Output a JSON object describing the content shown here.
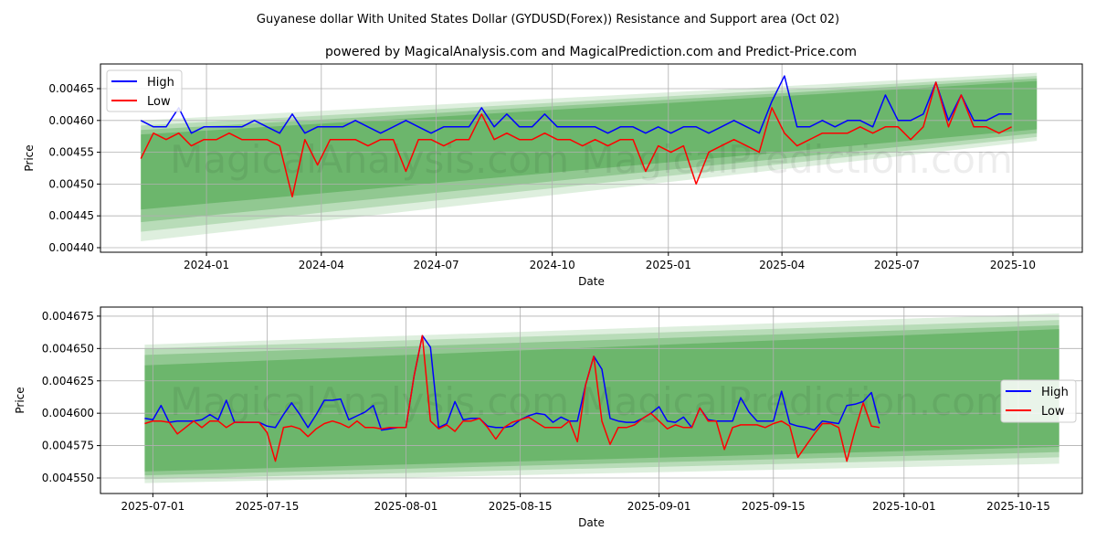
{
  "title": "Guyanese dollar With United States Dollar (GYDUSD(Forex)) Resistance and Support area (Oct 02)",
  "subtitle": "powered by MagicalAnalysis.com and MagicalPrediction.com and Predict-Price.com",
  "watermark": "MagicalAnalysis.com   MagicalPrediction.com",
  "colors": {
    "high": "#0000ff",
    "low": "#ff0000",
    "band": "#008000",
    "grid": "#b0b0b0"
  },
  "chart_data": [
    {
      "type": "line",
      "xlabel": "Date",
      "ylabel": "Price",
      "legend": [
        "High",
        "Low"
      ],
      "legend_position": "top-left",
      "grid": true,
      "xlim": [
        "2023-10-09",
        "2025-11-25"
      ],
      "ylim": [
        0.0043928,
        0.0046888
      ],
      "xticks": [
        {
          "date": "2024-01-01",
          "label": "2024-01"
        },
        {
          "date": "2024-04-01",
          "label": "2024-04"
        },
        {
          "date": "2024-07-01",
          "label": "2024-07"
        },
        {
          "date": "2024-10-01",
          "label": "2024-10"
        },
        {
          "date": "2025-01-01",
          "label": "2025-01"
        },
        {
          "date": "2025-04-01",
          "label": "2025-04"
        },
        {
          "date": "2025-07-01",
          "label": "2025-07"
        },
        {
          "date": "2025-10-01",
          "label": "2025-10"
        }
      ],
      "yticks": [
        {
          "value": 0.0044,
          "label": "0.00440"
        },
        {
          "value": 0.00445,
          "label": "0.00445"
        },
        {
          "value": 0.0045,
          "label": "0.00450"
        },
        {
          "value": 0.00455,
          "label": "0.00455"
        },
        {
          "value": 0.0046,
          "label": "0.00460"
        },
        {
          "value": 0.00465,
          "label": "0.00465"
        }
      ],
      "x_start": "2023-11-10",
      "x_step_days": 10,
      "series": [
        {
          "name": "High",
          "values": [
            0.0046,
            0.00459,
            0.00459,
            0.00462,
            0.00458,
            0.00459,
            0.00459,
            0.00459,
            0.00459,
            0.0046,
            0.00459,
            0.00458,
            0.00461,
            0.00458,
            0.00459,
            0.00459,
            0.00459,
            0.0046,
            0.00459,
            0.00458,
            0.00459,
            0.0046,
            0.00459,
            0.00458,
            0.00459,
            0.00459,
            0.00459,
            0.00462,
            0.00459,
            0.00461,
            0.00459,
            0.00459,
            0.00461,
            0.00459,
            0.00459,
            0.00459,
            0.00459,
            0.00458,
            0.00459,
            0.00459,
            0.00458,
            0.00459,
            0.00458,
            0.00459,
            0.00459,
            0.00458,
            0.00459,
            0.0046,
            0.00459,
            0.00458,
            0.00463,
            0.00467,
            0.00459,
            0.00459,
            0.0046,
            0.00459,
            0.0046,
            0.0046,
            0.00459,
            0.00464,
            0.0046,
            0.0046,
            0.00461,
            0.00466,
            0.0046,
            0.00464,
            0.0046,
            0.0046,
            0.00461,
            0.00461
          ]
        },
        {
          "name": "Low",
          "values": [
            0.00454,
            0.00458,
            0.00457,
            0.00458,
            0.00456,
            0.00457,
            0.00457,
            0.00458,
            0.00457,
            0.00457,
            0.00457,
            0.00456,
            0.00448,
            0.00457,
            0.00453,
            0.00457,
            0.00457,
            0.00457,
            0.00456,
            0.00457,
            0.00457,
            0.00452,
            0.00457,
            0.00457,
            0.00456,
            0.00457,
            0.00457,
            0.00461,
            0.00457,
            0.00458,
            0.00457,
            0.00457,
            0.00458,
            0.00457,
            0.00457,
            0.00456,
            0.00457,
            0.00456,
            0.00457,
            0.00457,
            0.00452,
            0.00456,
            0.00455,
            0.00456,
            0.0045,
            0.00455,
            0.00456,
            0.00457,
            0.00456,
            0.00455,
            0.00462,
            0.00458,
            0.00456,
            0.00457,
            0.00458,
            0.00458,
            0.00458,
            0.00459,
            0.00458,
            0.00459,
            0.00459,
            0.00457,
            0.00459,
            0.00466,
            0.00459,
            0.00464,
            0.00459,
            0.00459,
            0.00458,
            0.00459
          ]
        }
      ],
      "bands": {
        "start": "2023-11-10",
        "end": "2025-10-20",
        "layers": [
          {
            "upper": [
              0.0046,
              0.004675
            ],
            "lower": [
              0.00441,
              0.004568
            ]
          },
          {
            "upper": [
              0.004592,
              0.00467
            ],
            "lower": [
              0.004425,
              0.004574
            ]
          },
          {
            "upper": [
              0.004585,
              0.004666
            ],
            "lower": [
              0.00444,
              0.00458
            ]
          },
          {
            "upper": [
              0.004578,
              0.004662
            ],
            "lower": [
              0.00446,
              0.004586
            ]
          }
        ]
      }
    },
    {
      "type": "line",
      "xlabel": "Date",
      "ylabel": "Price",
      "legend": [
        "High",
        "Low"
      ],
      "legend_position": "center-right",
      "grid": true,
      "xlim": [
        "2025-06-24T14:00:00",
        "2025-10-22T20:00:00"
      ],
      "ylim": [
        0.004538,
        0.004682
      ],
      "xticks": [
        {
          "date": "2025-07-01",
          "label": "2025-07-01"
        },
        {
          "date": "2025-07-15",
          "label": "2025-07-15"
        },
        {
          "date": "2025-08-01",
          "label": "2025-08-01"
        },
        {
          "date": "2025-08-15",
          "label": "2025-08-15"
        },
        {
          "date": "2025-09-01",
          "label": "2025-09-01"
        },
        {
          "date": "2025-09-15",
          "label": "2025-09-15"
        },
        {
          "date": "2025-10-01",
          "label": "2025-10-01"
        },
        {
          "date": "2025-10-15",
          "label": "2025-10-15"
        }
      ],
      "yticks": [
        {
          "value": 0.00455,
          "label": "0.004550"
        },
        {
          "value": 0.004575,
          "label": "0.004575"
        },
        {
          "value": 0.0046,
          "label": "0.004600"
        },
        {
          "value": 0.004625,
          "label": "0.004625"
        },
        {
          "value": 0.00465,
          "label": "0.004650"
        },
        {
          "value": 0.004675,
          "label": "0.004675"
        }
      ],
      "x_start": "2025-06-30",
      "x_step_days": 1,
      "series": [
        {
          "name": "High",
          "values": [
            0.004596,
            0.004595,
            0.004606,
            0.004593,
            0.004594,
            0.004594,
            0.004594,
            0.004595,
            0.004599,
            0.004595,
            0.00461,
            0.004593,
            0.004593,
            0.004593,
            0.004593,
            0.00459,
            0.004589,
            0.004599,
            0.004608,
            0.004599,
            0.004589,
            0.004599,
            0.00461,
            0.00461,
            0.004611,
            0.004595,
            0.004598,
            0.004601,
            0.004606,
            0.004587,
            0.004588,
            0.004589,
            0.004589,
            0.004629,
            0.00466,
            0.004651,
            0.004589,
            0.004592,
            0.004609,
            0.004595,
            0.004596,
            0.004596,
            0.00459,
            0.004589,
            0.004589,
            0.00459,
            0.004595,
            0.004598,
            0.0046,
            0.004599,
            0.004593,
            0.004597,
            0.004594,
            0.004594,
            0.004622,
            0.004644,
            0.004634,
            0.004596,
            0.004594,
            0.004593,
            0.004593,
            0.004596,
            0.0046,
            0.004605,
            0.004594,
            0.004593,
            0.004597,
            0.004589,
            0.004604,
            0.004595,
            0.004594,
            0.004594,
            0.004594,
            0.004612,
            0.004601,
            0.004594,
            0.004594,
            0.004594,
            0.004617,
            0.004592,
            0.00459,
            0.004589,
            0.004587,
            0.004594,
            0.004593,
            0.004592,
            0.004606,
            0.004607,
            0.004609,
            0.004616,
            0.004592
          ]
        },
        {
          "name": "Low",
          "values": [
            0.004592,
            0.004594,
            0.004594,
            0.004593,
            0.004584,
            0.004589,
            0.004594,
            0.004589,
            0.004594,
            0.004594,
            0.004589,
            0.004593,
            0.004593,
            0.004593,
            0.004593,
            0.004585,
            0.004563,
            0.004589,
            0.00459,
            0.004588,
            0.004582,
            0.004588,
            0.004592,
            0.004594,
            0.004592,
            0.004589,
            0.004594,
            0.004589,
            0.004589,
            0.004588,
            0.004589,
            0.004589,
            0.004589,
            0.004629,
            0.00466,
            0.004594,
            0.004588,
            0.004591,
            0.004586,
            0.004594,
            0.004594,
            0.004596,
            0.004589,
            0.00458,
            0.004589,
            0.004593,
            0.004595,
            0.004597,
            0.004593,
            0.004589,
            0.004589,
            0.004589,
            0.004594,
            0.004578,
            0.004622,
            0.004644,
            0.004594,
            0.004576,
            0.004589,
            0.004589,
            0.004591,
            0.004596,
            0.0046,
            0.004594,
            0.004588,
            0.004591,
            0.004589,
            0.004589,
            0.004604,
            0.004594,
            0.004594,
            0.004572,
            0.004589,
            0.004591,
            0.004591,
            0.004591,
            0.004589,
            0.004592,
            0.004594,
            0.00459,
            0.004566,
            0.004575,
            0.004584,
            0.004592,
            0.004592,
            0.004589,
            0.004563,
            0.004587,
            0.004608,
            0.00459,
            0.004589
          ]
        }
      ],
      "bands": {
        "start": "2025-06-30",
        "end": "2025-10-20",
        "layers": [
          {
            "upper": [
              0.004653,
              0.004677
            ],
            "lower": [
              0.004546,
              0.004561
            ]
          },
          {
            "upper": [
              0.00465,
              0.004672
            ],
            "lower": [
              0.004549,
              0.004566
            ]
          },
          {
            "upper": [
              0.004645,
              0.004668
            ],
            "lower": [
              0.004552,
              0.00457
            ]
          },
          {
            "upper": [
              0.004637,
              0.004665
            ],
            "lower": [
              0.004555,
              0.004574
            ]
          }
        ]
      }
    }
  ]
}
